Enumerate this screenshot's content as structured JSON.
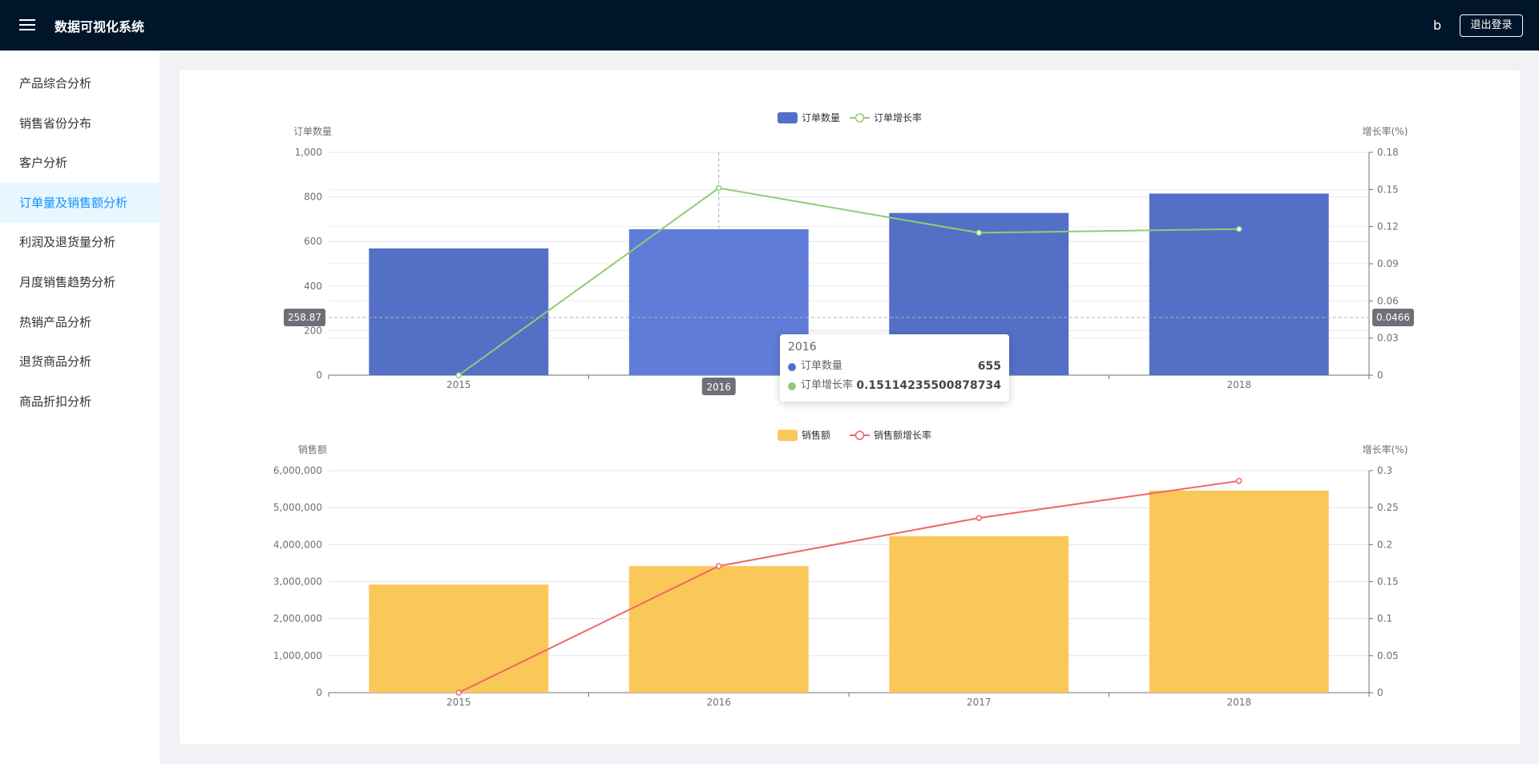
{
  "app": {
    "title": "数据可视化系统",
    "user": "b",
    "logout_label": "退出登录"
  },
  "sidebar": {
    "items": [
      {
        "label": "产品综合分析"
      },
      {
        "label": "销售省份分布"
      },
      {
        "label": "客户分析"
      },
      {
        "label": "订单量及销售额分析",
        "active": true
      },
      {
        "label": "利润及退货量分析"
      },
      {
        "label": "月度销售趋势分析"
      },
      {
        "label": "热销产品分析"
      },
      {
        "label": "退货商品分析"
      },
      {
        "label": "商品折扣分析"
      }
    ]
  },
  "tooltip": {
    "title": "2016",
    "rows": [
      {
        "label": "订单数量",
        "value": "655",
        "color": "#5470c6"
      },
      {
        "label": "订单增长率",
        "value": "0.15114235500878734",
        "color": "#91cc75"
      }
    ]
  },
  "axis_pointer": {
    "left": "258.87",
    "right": "0.0466",
    "x": "2016"
  },
  "chart_data": [
    {
      "type": "bar",
      "categories": [
        "2015",
        "2016",
        "2017",
        "2018"
      ],
      "series": [
        {
          "name": "订单数量",
          "type": "bar",
          "axis": "left",
          "values": [
            569,
            655,
            728,
            815
          ],
          "color": "#5470c6"
        },
        {
          "name": "订单增长率",
          "type": "line",
          "axis": "right",
          "values": [
            0,
            0.15114235500878734,
            0.115,
            0.118
          ],
          "color": "#91cc75"
        }
      ],
      "ylabel_left": "订单数量",
      "ylabel_right": "增长率(%)",
      "ylim_left": [
        0,
        1000
      ],
      "ylim_right": [
        0,
        0.18
      ],
      "yticks_left": [
        "0",
        "200",
        "400",
        "600",
        "800",
        "1,000"
      ],
      "yticks_right": [
        "0",
        "0.03",
        "0.06",
        "0.09",
        "0.12",
        "0.15",
        "0.18"
      ],
      "legend": "top-center",
      "grid": true
    },
    {
      "type": "bar",
      "categories": [
        "2015",
        "2016",
        "2017",
        "2018"
      ],
      "series": [
        {
          "name": "销售额",
          "type": "bar",
          "axis": "left",
          "values": [
            2920000,
            3420000,
            4230000,
            5460000
          ],
          "color": "#fac858"
        },
        {
          "name": "销售额增长率",
          "type": "line",
          "axis": "right",
          "values": [
            0,
            0.171,
            0.236,
            0.286
          ],
          "color": "#ee6666"
        }
      ],
      "ylabel_left": "销售额",
      "ylabel_right": "增长率(%)",
      "ylim_left": [
        0,
        6000000
      ],
      "ylim_right": [
        0,
        0.3
      ],
      "yticks_left": [
        "0",
        "1,000,000",
        "2,000,000",
        "3,000,000",
        "4,000,000",
        "5,000,000",
        "6,000,000"
      ],
      "yticks_right": [
        "0",
        "0.05",
        "0.1",
        "0.15",
        "0.2",
        "0.25",
        "0.3"
      ],
      "legend": "top-center",
      "grid": true
    }
  ]
}
